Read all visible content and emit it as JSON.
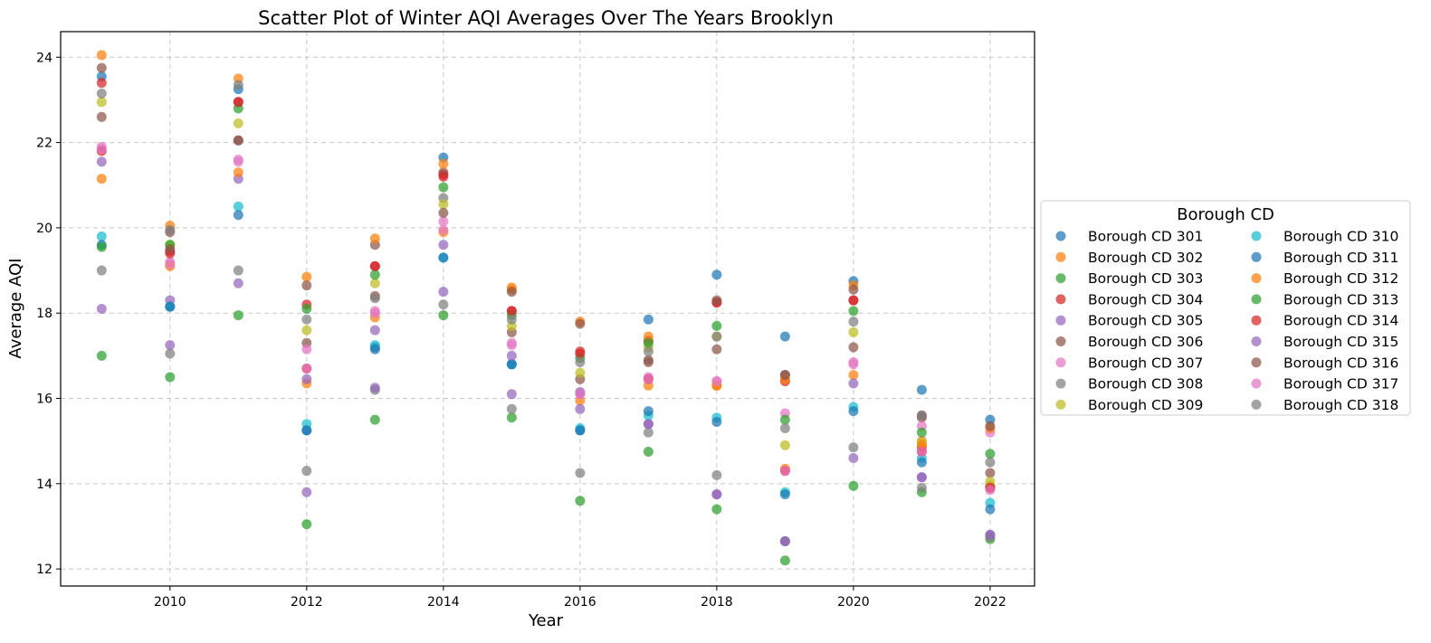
{
  "chart_data": {
    "type": "scatter",
    "title": "Scatter Plot of Winter AQI Averages Over The Years Brooklyn",
    "xlabel": "Year",
    "ylabel": "Average AQI",
    "xlim": [
      2008.4,
      2022.65
    ],
    "ylim": [
      11.6,
      24.6
    ],
    "xticks": [
      2010,
      2012,
      2014,
      2016,
      2018,
      2020,
      2022
    ],
    "yticks": [
      12,
      14,
      16,
      18,
      20,
      22,
      24
    ],
    "grid": true,
    "legend": {
      "title": "Borough CD",
      "placement": "center right, outside plot",
      "columns": 2
    },
    "x": [
      2009,
      2010,
      2011,
      2012,
      2013,
      2014,
      2015,
      2016,
      2017,
      2018,
      2019,
      2020,
      2021,
      2022
    ],
    "series": [
      {
        "name": "Borough CD 301",
        "color": "#1f77b4",
        "values": [
          23.55,
          18.15,
          23.25,
          15.25,
          17.2,
          21.65,
          16.8,
          15.25,
          17.85,
          18.9,
          17.45,
          18.75,
          16.2,
          15.5
        ]
      },
      {
        "name": "Borough CD 302",
        "color": "#ff7f0e",
        "values": [
          24.05,
          20.05,
          23.5,
          16.35,
          17.9,
          19.9,
          18.6,
          15.95,
          16.3,
          16.3,
          14.35,
          16.55,
          15.0,
          13.95
        ]
      },
      {
        "name": "Borough CD 303",
        "color": "#2ca02c",
        "values": [
          17.0,
          16.5,
          17.95,
          13.05,
          15.5,
          17.95,
          15.55,
          13.6,
          14.75,
          13.4,
          12.2,
          13.95,
          13.8,
          12.7
        ]
      },
      {
        "name": "Borough CD 304",
        "color": "#d62728",
        "values": [
          23.4,
          19.45,
          22.95,
          18.2,
          19.1,
          21.25,
          18.05,
          17.1,
          17.35,
          18.25,
          16.4,
          18.3,
          14.85,
          13.9
        ]
      },
      {
        "name": "Borough CD 305",
        "color": "#9467bd",
        "values": [
          18.1,
          18.3,
          21.15,
          13.8,
          17.6,
          19.6,
          16.1,
          15.75,
          15.4,
          13.75,
          12.65,
          16.35,
          14.15,
          12.8
        ]
      },
      {
        "name": "Borough CD 306",
        "color": "#8c564b",
        "values": [
          22.6,
          19.9,
          22.05,
          17.3,
          19.6,
          21.3,
          17.55,
          16.45,
          16.9,
          17.15,
          16.55,
          17.2,
          15.55,
          14.25
        ]
      },
      {
        "name": "Borough CD 307",
        "color": "#e377c2",
        "values": [
          21.9,
          19.2,
          21.55,
          17.15,
          18.0,
          20.15,
          17.25,
          16.1,
          16.5,
          16.4,
          15.65,
          16.85,
          15.35,
          15.2
        ]
      },
      {
        "name": "Borough CD 308",
        "color": "#7f7f7f",
        "values": [
          19.0,
          17.05,
          19.0,
          14.3,
          16.2,
          20.7,
          15.75,
          14.25,
          15.2,
          14.2,
          12.65,
          14.85,
          13.9,
          12.75
        ]
      },
      {
        "name": "Borough CD 309",
        "color": "#bcbd22",
        "values": [
          22.95,
          19.6,
          22.45,
          17.6,
          18.7,
          20.55,
          17.7,
          16.6,
          17.2,
          17.45,
          14.9,
          17.55,
          14.95,
          14.05
        ]
      },
      {
        "name": "Borough CD 310",
        "color": "#17becf",
        "values": [
          19.8,
          18.15,
          20.5,
          15.4,
          17.25,
          19.3,
          16.8,
          15.3,
          15.6,
          15.55,
          13.8,
          15.8,
          14.6,
          13.55
        ]
      },
      {
        "name": "Borough CD 311",
        "color": "#1f77b4",
        "values": [
          19.6,
          18.15,
          20.3,
          15.25,
          17.15,
          19.3,
          16.8,
          15.25,
          15.7,
          15.45,
          13.75,
          15.7,
          14.5,
          13.4
        ]
      },
      {
        "name": "Borough CD 312",
        "color": "#ff7f0e",
        "values": [
          21.15,
          19.1,
          21.3,
          18.85,
          19.75,
          21.5,
          18.55,
          17.8,
          17.45,
          16.3,
          16.45,
          18.65,
          14.9,
          15.3
        ]
      },
      {
        "name": "Borough CD 313",
        "color": "#2ca02c",
        "values": [
          19.55,
          19.6,
          22.8,
          18.1,
          18.9,
          20.95,
          17.95,
          16.95,
          17.3,
          17.7,
          15.5,
          18.05,
          15.2,
          14.7
        ]
      },
      {
        "name": "Borough CD 314",
        "color": "#d62728",
        "values": [
          21.8,
          19.4,
          22.95,
          16.7,
          19.1,
          21.2,
          18.05,
          17.05,
          16.45,
          18.25,
          14.3,
          18.3,
          14.75,
          13.9
        ]
      },
      {
        "name": "Borough CD 315",
        "color": "#9467bd",
        "values": [
          21.55,
          17.25,
          18.7,
          16.45,
          16.25,
          18.5,
          17.0,
          16.15,
          15.4,
          13.75,
          12.65,
          14.6,
          14.15,
          12.8
        ]
      },
      {
        "name": "Borough CD 316",
        "color": "#8c564b",
        "values": [
          23.75,
          19.5,
          22.05,
          18.65,
          18.4,
          20.35,
          18.5,
          17.75,
          16.85,
          18.3,
          16.55,
          18.55,
          15.6,
          15.35
        ]
      },
      {
        "name": "Borough CD 317",
        "color": "#e377c2",
        "values": [
          21.85,
          19.15,
          21.6,
          16.7,
          18.05,
          19.95,
          17.3,
          16.1,
          16.45,
          16.4,
          14.3,
          16.8,
          14.75,
          13.85
        ]
      },
      {
        "name": "Borough CD 318",
        "color": "#7f7f7f",
        "values": [
          23.15,
          19.95,
          23.35,
          17.85,
          18.35,
          18.2,
          17.85,
          16.85,
          17.1,
          17.45,
          15.3,
          17.8,
          15.6,
          14.5
        ]
      }
    ]
  }
}
